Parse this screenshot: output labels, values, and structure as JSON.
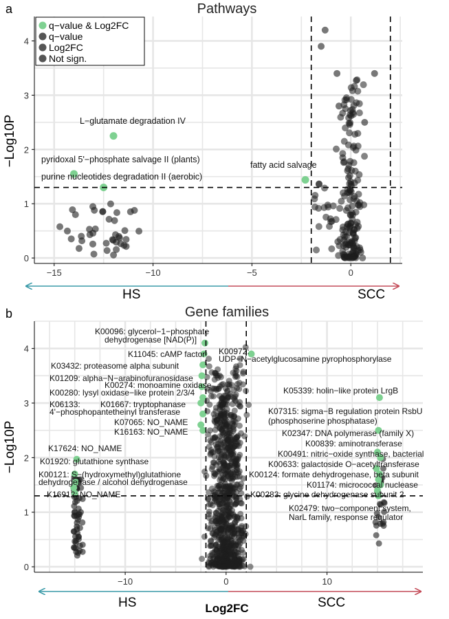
{
  "panel_labels": [
    "a",
    "b"
  ],
  "colors": {
    "significant": "#7ed191",
    "not_significant": "#1e1e1e",
    "grid": "#e6e6e6",
    "arrow_left": "#3a9aa8",
    "arrow_right": "#c44b58"
  },
  "chart_data": [
    {
      "type": "scatter",
      "title": "Pathways",
      "ylabel": "−Log10P",
      "xlabel": "",
      "xlim": [
        -16,
        2.6
      ],
      "ylim": [
        -0.1,
        4.45
      ],
      "xticks": [
        -15,
        -10,
        -5,
        0
      ],
      "xtick_labels": [
        "−15",
        "−10",
        "−5",
        "0"
      ],
      "yticks": [
        0,
        1,
        2,
        3,
        4
      ],
      "thresholds": {
        "x": [
          -2,
          2
        ],
        "y": 1.3
      },
      "grid": true,
      "legend": {
        "position": "top-left",
        "entries": [
          "q−value & Log2FC",
          "q−value",
          "Log2FC",
          "Not sign."
        ]
      },
      "side_labels": {
        "left": "HS",
        "right": "SCC"
      },
      "significant_points": [
        {
          "label": "L−glutamate degradation IV",
          "x": -12.0,
          "y": 2.25
        },
        {
          "label": "pyridoxal 5'−phosphate salvage II (plants)",
          "x": -14.0,
          "y": 1.55
        },
        {
          "label": "purine nucleotides degradation II (aerobic)",
          "x": -12.5,
          "y": 1.3
        },
        {
          "label": "fatty acid salvage",
          "x": -2.3,
          "y": 1.44
        }
      ]
    },
    {
      "type": "scatter",
      "title": "Gene families",
      "ylabel": "−Log10P",
      "xlabel": "Log2FC",
      "xlim": [
        -19,
        19.5
      ],
      "ylim": [
        -0.1,
        4.5
      ],
      "xticks": [
        -10,
        0,
        10
      ],
      "xtick_labels": [
        "−10",
        "0",
        "10"
      ],
      "yticks": [
        0,
        1,
        2,
        3,
        4
      ],
      "thresholds": {
        "x": [
          -2,
          2
        ],
        "y": 1.3
      },
      "grid": true,
      "side_labels": {
        "left": "HS",
        "right": "SCC"
      },
      "annotations": [
        {
          "line1": "K00096: glycerol−1−phosphate",
          "line2": "dehydrogenase [NAD(P)]"
        },
        {
          "line1": "K11045: cAMP factor"
        },
        {
          "line1": "K03432: proteasome alpha subunit"
        },
        {
          "line1": "K01209: alpha−N−arabinofuranosidase"
        },
        {
          "line1": "K00274: monoamine oxidase"
        },
        {
          "line1": "K00280: lysyl oxidase−like protein 2/3/4"
        },
        {
          "line1": "K06133:",
          "line2": "4'−phosphopantetheinyl transferase"
        },
        {
          "line1": "K01667: tryptophanase"
        },
        {
          "line1": "K07065: NO_NAME"
        },
        {
          "line1": "K16163: NO_NAME"
        },
        {
          "line1": "K17624: NO_NAME"
        },
        {
          "line1": "K01920: glutathione synthase"
        },
        {
          "line1": "K00121: S−(hydroxymethyl)glutathione",
          "line2": "dehydrogenase / alcohol dehydrogenase"
        },
        {
          "line1": "K16912: NO_NAME"
        },
        {
          "line1": "K00972:",
          "line2": "UDP−N−acetylglucosamine  pyrophosphorylase"
        },
        {
          "line1": "K05339: holin−like protein LrgB"
        },
        {
          "line1": "K07315: sigma−B regulation protein RsbU",
          "line2": "(phosphoserine phosphatase)"
        },
        {
          "line1": "K02347: DNA polymerase (family X)"
        },
        {
          "line1": "K00839: aminotransferase"
        },
        {
          "line1": "K00491: nitric−oxide synthase, bacterial"
        },
        {
          "line1": "K00633: galactoside O−acetyltransferase"
        },
        {
          "line1": "K00124: formate dehydrogenase, beta subunit"
        },
        {
          "line1": "K01174: micrococcal nuclease"
        },
        {
          "line1": "K00283: glycine dehydrogenase subunit 2"
        },
        {
          "line1": "K02479: two−component system,",
          "line2": "NarL family, response regulator"
        }
      ]
    }
  ]
}
